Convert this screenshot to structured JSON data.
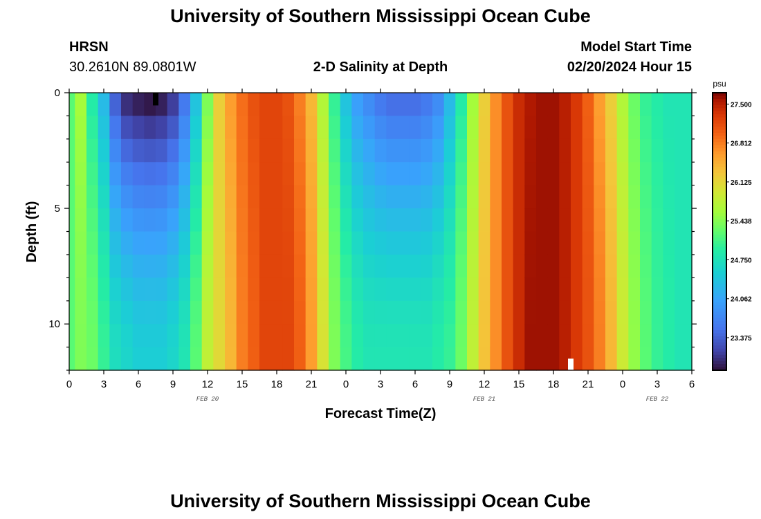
{
  "page": {
    "title": "University of Southern Mississippi Ocean Cube",
    "footer_title": "University of Southern Mississippi Ocean Cube"
  },
  "station": {
    "name": "HRSN",
    "coords": "30.2610N  89.0801W"
  },
  "plot_title": "2-D Salinity at Depth",
  "model": {
    "label": "Model Start Time",
    "value": "02/20/2024 Hour 15"
  },
  "chart_data": {
    "type": "heatmap",
    "title": "2-D Salinity at Depth",
    "xlabel": "Forecast Time(Z)",
    "ylabel": "Depth (ft)",
    "x_range_hours": [
      0,
      54
    ],
    "ylim": [
      0,
      12
    ],
    "y_inverted": true,
    "x_tick_hours": [
      0,
      3,
      6,
      9,
      12,
      15,
      18,
      21,
      24,
      27,
      30,
      33,
      36,
      39,
      42,
      45,
      48,
      51,
      54
    ],
    "x_tick_labels": [
      "0",
      "3",
      "6",
      "9",
      "12",
      "15",
      "18",
      "21",
      "0",
      "3",
      "6",
      "9",
      "12",
      "15",
      "18",
      "21",
      "0",
      "3",
      "6"
    ],
    "date_labels": [
      {
        "text": "FEB 20",
        "hour": 12
      },
      {
        "text": "FEB 21",
        "hour": 36
      },
      {
        "text": "FEB 22",
        "hour": 51
      }
    ],
    "y_ticks": [
      0,
      5,
      10
    ],
    "colorbar": {
      "unit": "psu",
      "min": 22.8,
      "max": 27.7,
      "tick_values": [
        27.5,
        26.812,
        26.125,
        25.438,
        24.75,
        24.062,
        23.375
      ],
      "tick_labels": [
        "27.500",
        "26.812",
        "26.125",
        "25.438",
        "24.750",
        "24.062",
        "23.375"
      ]
    },
    "depth_levels_ft": [
      0.5,
      1.5,
      2.5,
      3.5,
      4.5,
      5.5,
      6.5,
      7.5,
      8.5,
      9.5,
      10.5,
      11.5
    ],
    "time_profile": [
      {
        "hour": 0,
        "surface": 25.2,
        "bottom": 25.2
      },
      {
        "hour": 1,
        "surface": 25.6,
        "bottom": 25.4
      },
      {
        "hour": 2,
        "surface": 24.9,
        "bottom": 25.3
      },
      {
        "hour": 3,
        "surface": 24.3,
        "bottom": 25.0
      },
      {
        "hour": 4,
        "surface": 23.4,
        "bottom": 24.7
      },
      {
        "hour": 5,
        "surface": 23.0,
        "bottom": 24.6
      },
      {
        "hour": 6,
        "surface": 22.9,
        "bottom": 24.5
      },
      {
        "hour": 7,
        "surface": 22.85,
        "bottom": 24.5
      },
      {
        "hour": 8,
        "surface": 22.9,
        "bottom": 24.5
      },
      {
        "hour": 9,
        "surface": 23.1,
        "bottom": 24.6
      },
      {
        "hour": 10,
        "surface": 23.6,
        "bottom": 24.8
      },
      {
        "hour": 11,
        "surface": 24.4,
        "bottom": 25.2
      },
      {
        "hour": 12,
        "surface": 25.4,
        "bottom": 25.8
      },
      {
        "hour": 13,
        "surface": 26.2,
        "bottom": 26.1
      },
      {
        "hour": 14,
        "surface": 26.6,
        "bottom": 26.4
      },
      {
        "hour": 15,
        "surface": 26.9,
        "bottom": 26.8
      },
      {
        "hour": 16,
        "surface": 27.1,
        "bottom": 27.0
      },
      {
        "hour": 17,
        "surface": 27.2,
        "bottom": 27.2
      },
      {
        "hour": 18,
        "surface": 27.2,
        "bottom": 27.2
      },
      {
        "hour": 19,
        "surface": 27.1,
        "bottom": 27.2
      },
      {
        "hour": 20,
        "surface": 26.8,
        "bottom": 27.0
      },
      {
        "hour": 21,
        "surface": 26.4,
        "bottom": 26.6
      },
      {
        "hour": 22,
        "surface": 25.7,
        "bottom": 26.0
      },
      {
        "hour": 23,
        "surface": 25.0,
        "bottom": 25.4
      },
      {
        "hour": 24,
        "surface": 24.4,
        "bottom": 25.1
      },
      {
        "hour": 25,
        "surface": 24.0,
        "bottom": 24.9
      },
      {
        "hour": 26,
        "surface": 23.8,
        "bottom": 24.8
      },
      {
        "hour": 27,
        "surface": 23.6,
        "bottom": 24.8
      },
      {
        "hour": 28,
        "surface": 23.5,
        "bottom": 24.8
      },
      {
        "hour": 29,
        "surface": 23.5,
        "bottom": 24.8
      },
      {
        "hour": 30,
        "surface": 23.5,
        "bottom": 24.8
      },
      {
        "hour": 31,
        "surface": 23.6,
        "bottom": 24.8
      },
      {
        "hour": 32,
        "surface": 23.8,
        "bottom": 24.9
      },
      {
        "hour": 33,
        "surface": 24.3,
        "bottom": 25.0
      },
      {
        "hour": 34,
        "surface": 24.9,
        "bottom": 25.3
      },
      {
        "hour": 35,
        "surface": 25.6,
        "bottom": 25.8
      },
      {
        "hour": 36,
        "surface": 26.2,
        "bottom": 26.3
      },
      {
        "hour": 37,
        "surface": 26.7,
        "bottom": 26.7
      },
      {
        "hour": 38,
        "surface": 27.1,
        "bottom": 27.1
      },
      {
        "hour": 39,
        "surface": 27.4,
        "bottom": 27.4
      },
      {
        "hour": 40,
        "surface": 27.55,
        "bottom": 27.6
      },
      {
        "hour": 41,
        "surface": 27.6,
        "bottom": 27.6
      },
      {
        "hour": 42,
        "surface": 27.6,
        "bottom": 27.6
      },
      {
        "hour": 43,
        "surface": 27.5,
        "bottom": 27.5
      },
      {
        "hour": 44,
        "surface": 27.3,
        "bottom": 27.3
      },
      {
        "hour": 45,
        "surface": 27.0,
        "bottom": 27.1
      },
      {
        "hour": 46,
        "surface": 26.6,
        "bottom": 26.8
      },
      {
        "hour": 47,
        "surface": 26.2,
        "bottom": 26.4
      },
      {
        "hour": 48,
        "surface": 25.7,
        "bottom": 25.9
      },
      {
        "hour": 49,
        "surface": 25.3,
        "bottom": 25.5
      },
      {
        "hour": 50,
        "surface": 25.0,
        "bottom": 25.2
      },
      {
        "hour": 51,
        "surface": 24.9,
        "bottom": 25.0
      },
      {
        "hour": 52,
        "surface": 24.8,
        "bottom": 24.9
      },
      {
        "hour": 53,
        "surface": 24.8,
        "bottom": 24.8
      },
      {
        "hour": 54,
        "surface": 24.8,
        "bottom": 24.8
      }
    ],
    "markers": [
      {
        "hour": 7.5,
        "depth_top": 0.0,
        "depth_bottom": 0.55,
        "color": "#000000"
      },
      {
        "hour": 43.5,
        "depth_top": 11.5,
        "depth_bottom": 12.0,
        "color": "#ffffff"
      }
    ]
  }
}
